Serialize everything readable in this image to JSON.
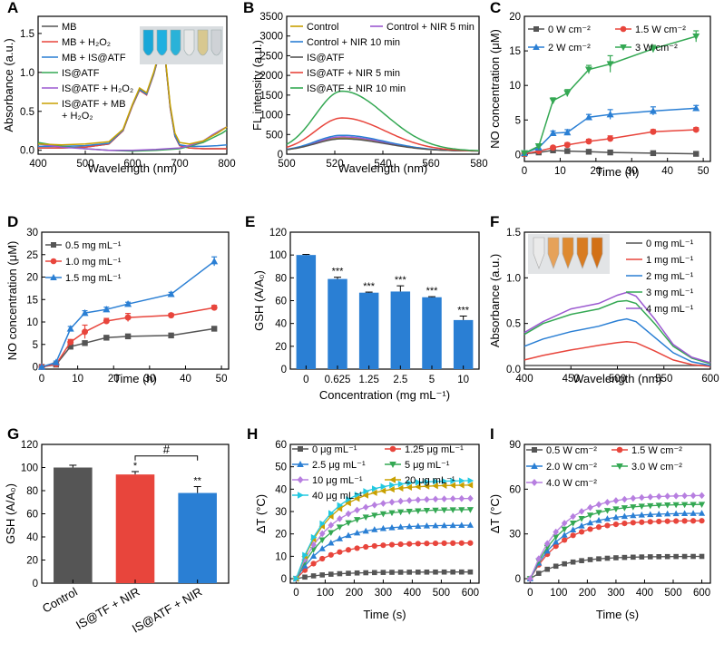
{
  "figure": {
    "panel_letters": [
      "A",
      "B",
      "C",
      "D",
      "E",
      "F",
      "G",
      "H",
      "I"
    ]
  },
  "chart_data": [
    {
      "panel": "A",
      "type": "line",
      "xlabel": "Wavelength (nm)",
      "ylabel": "Absorbance (a.u.)",
      "xlim": [
        400,
        800
      ],
      "ylim": [
        -0.05,
        1.72
      ],
      "xticks": [
        400,
        500,
        600,
        700,
        800
      ],
      "yticks": [
        0.0,
        0.5,
        1.0,
        1.5
      ],
      "legend": {
        "position": "top-left",
        "entries": [
          "MB",
          "MB + H₂O₂",
          "MB + IS@ATF",
          "IS@ATF",
          "IS@ATF + H₂O₂",
          "IS@ATF + MB + H₂O₂"
        ]
      },
      "series": [
        {
          "name": "MB",
          "color": "#555555",
          "x": [
            400,
            450,
            500,
            550,
            580,
            600,
            615,
            630,
            645,
            660,
            665,
            670,
            680,
            690,
            700,
            720,
            750,
            780,
            800
          ],
          "y": [
            0.03,
            0.03,
            0.04,
            0.08,
            0.25,
            0.58,
            0.78,
            0.72,
            0.98,
            1.31,
            1.3,
            1.15,
            0.55,
            0.18,
            0.06,
            0.03,
            0.02,
            0.02,
            0.02
          ]
        },
        {
          "name": "MB + H₂O₂",
          "color": "#e8453c",
          "x": [
            400,
            450,
            500,
            550,
            580,
            600,
            615,
            630,
            645,
            660,
            665,
            670,
            680,
            690,
            700,
            720,
            750,
            780,
            800
          ],
          "y": [
            0.03,
            0.03,
            0.04,
            0.08,
            0.25,
            0.57,
            0.77,
            0.71,
            0.97,
            1.3,
            1.29,
            1.14,
            0.54,
            0.18,
            0.06,
            0.03,
            0.02,
            0.02,
            0.02
          ]
        },
        {
          "name": "MB + IS@ATF",
          "color": "#2a7fd4",
          "x": [
            400,
            450,
            500,
            550,
            580,
            600,
            615,
            630,
            645,
            660,
            665,
            670,
            680,
            690,
            700,
            720,
            750,
            780,
            800
          ],
          "y": [
            0.05,
            0.05,
            0.06,
            0.09,
            0.26,
            0.58,
            0.78,
            0.72,
            0.98,
            1.31,
            1.3,
            1.15,
            0.56,
            0.19,
            0.07,
            0.05,
            0.05,
            0.06,
            0.07
          ]
        },
        {
          "name": "IS@ATF",
          "color": "#34a853",
          "x": [
            400,
            450,
            500,
            550,
            600,
            650,
            700,
            720,
            750,
            770,
            790,
            800
          ],
          "y": [
            0.1,
            0.05,
            0.02,
            0.0,
            -0.01,
            0.0,
            0.02,
            0.05,
            0.1,
            0.16,
            0.22,
            0.26
          ]
        },
        {
          "name": "IS@ATF + H₂O₂",
          "color": "#9b59d0",
          "x": [
            400,
            450,
            500,
            550,
            600,
            650,
            700,
            720,
            750,
            770,
            790,
            800
          ],
          "y": [
            0.08,
            0.04,
            0.02,
            0.0,
            0.0,
            0.01,
            0.03,
            0.06,
            0.12,
            0.2,
            0.27,
            0.3
          ]
        },
        {
          "name": "IS@ATF + MB + H₂O₂",
          "color": "#c8a000",
          "x": [
            400,
            450,
            500,
            550,
            580,
            600,
            615,
            630,
            645,
            660,
            665,
            670,
            680,
            690,
            700,
            720,
            750,
            780,
            800
          ],
          "y": [
            0.08,
            0.07,
            0.08,
            0.11,
            0.27,
            0.59,
            0.8,
            0.74,
            1.0,
            1.33,
            1.32,
            1.17,
            0.58,
            0.22,
            0.1,
            0.08,
            0.12,
            0.22,
            0.3
          ]
        }
      ]
    },
    {
      "panel": "B",
      "type": "line",
      "xlabel": "Wavelength (nm)",
      "ylabel": "FL intensity (a.u.)",
      "xlim": [
        500,
        580
      ],
      "ylim": [
        0,
        3500
      ],
      "xticks": [
        500,
        520,
        540,
        560,
        580
      ],
      "yticks": [
        0,
        500,
        1000,
        1500,
        2000,
        2500,
        3000,
        3500
      ],
      "legend": {
        "position": "top",
        "entries": [
          "Control",
          "Control + NIR 5 min",
          "Control + NIR 10 min",
          "IS@ATF",
          "IS@ATF + NIR 5 min",
          "IS@ATF + NIR 10 min"
        ]
      },
      "series": [
        {
          "name": "Control",
          "color": "#c8a000",
          "peak": 410
        },
        {
          "name": "Control + NIR 5 min",
          "color": "#9b59d0",
          "peak": 440
        },
        {
          "name": "Control + NIR 10 min",
          "color": "#2a7fd4",
          "peak": 480
        },
        {
          "name": "IS@ATF",
          "color": "#555555",
          "peak": 390
        },
        {
          "name": "IS@ATF + NIR 5 min",
          "color": "#e8453c",
          "peak": 920
        },
        {
          "name": "IS@ATF + NIR 10 min",
          "color": "#34a853",
          "peak": 1600
        }
      ],
      "peak_wavelength": 523
    },
    {
      "panel": "C",
      "type": "line",
      "xlabel": "Time (h)",
      "ylabel": "NO concentration (μM)",
      "xlim": [
        0,
        52
      ],
      "ylim": [
        -1,
        20
      ],
      "xticks": [
        0,
        10,
        20,
        30,
        40,
        50
      ],
      "yticks": [
        0,
        5,
        10,
        15,
        20
      ],
      "legend": {
        "position": "top",
        "entries": [
          "0 W cm⁻²",
          "1.5 W cm⁻²",
          "2 W cm⁻²",
          "3 W cm⁻²"
        ]
      },
      "x": [
        0,
        4,
        8,
        12,
        18,
        24,
        36,
        48
      ],
      "series": [
        {
          "name": "0 W cm⁻²",
          "color": "#555555",
          "marker": "square",
          "values": [
            0.1,
            0.3,
            0.6,
            0.5,
            0.4,
            0.3,
            0.2,
            0.1
          ],
          "err": [
            0.1,
            0.1,
            0.2,
            0.2,
            0.2,
            0.2,
            0.2,
            0.2
          ]
        },
        {
          "name": "1.5 W cm⁻²",
          "color": "#e8453c",
          "marker": "circle",
          "values": [
            0.1,
            0.5,
            1.0,
            1.4,
            1.9,
            2.3,
            3.3,
            3.6
          ],
          "err": [
            0.1,
            0.2,
            0.2,
            0.3,
            0.3,
            0.4,
            0.3,
            0.3
          ]
        },
        {
          "name": "2 W cm⁻²",
          "color": "#2a7fd4",
          "marker": "triangle-up",
          "values": [
            0.2,
            1.0,
            3.1,
            3.2,
            5.4,
            5.8,
            6.3,
            6.7
          ],
          "err": [
            0.2,
            0.3,
            0.3,
            0.4,
            0.4,
            0.7,
            0.6,
            0.4
          ]
        },
        {
          "name": "3 W cm⁻²",
          "color": "#34a853",
          "marker": "triangle-down",
          "values": [
            0.2,
            1.2,
            7.8,
            8.9,
            12.3,
            13.1,
            15.3,
            17.1
          ],
          "err": [
            0.2,
            0.3,
            0.4,
            0.5,
            0.6,
            1.2,
            0.5,
            0.8
          ]
        }
      ]
    },
    {
      "panel": "D",
      "type": "line",
      "xlabel": "Time (h)",
      "ylabel": "NO concentration (μM)",
      "xlim": [
        0,
        52
      ],
      "ylim": [
        -0.5,
        30
      ],
      "xticks": [
        0,
        10,
        20,
        30,
        40,
        50
      ],
      "yticks": [
        0,
        5,
        10,
        15,
        20,
        25,
        30
      ],
      "legend": {
        "position": "top-left",
        "entries": [
          "0.5 mg mL⁻¹",
          "1.0 mg mL⁻¹",
          "1.5 mg mL⁻¹"
        ]
      },
      "x": [
        0,
        4,
        8,
        12,
        18,
        24,
        36,
        48
      ],
      "series": [
        {
          "name": "0.5 mg mL⁻¹",
          "color": "#555555",
          "marker": "square",
          "values": [
            0,
            0.5,
            4.5,
            5.3,
            6.5,
            6.8,
            7.0,
            8.5
          ],
          "err": [
            0.1,
            0.2,
            0.5,
            0.4,
            0.3,
            0.3,
            0.3,
            0.3
          ]
        },
        {
          "name": "1.0 mg mL⁻¹",
          "color": "#e8453c",
          "marker": "circle",
          "values": [
            0,
            0.6,
            5.5,
            7.8,
            10.2,
            11.0,
            11.5,
            13.2
          ],
          "err": [
            0.1,
            0.2,
            0.6,
            1.5,
            0.6,
            0.9,
            0.4,
            0.5
          ]
        },
        {
          "name": "1.5 mg mL⁻¹",
          "color": "#2a7fd4",
          "marker": "triangle-up",
          "values": [
            0,
            1.0,
            8.5,
            12.0,
            12.8,
            14.0,
            16.2,
            23.5
          ],
          "err": [
            0.1,
            0.3,
            0.5,
            0.5,
            0.5,
            0.4,
            0.4,
            1.0
          ]
        }
      ]
    },
    {
      "panel": "E",
      "type": "bar",
      "xlabel": "Concentration (mg mL⁻¹)",
      "ylabel": "GSH (A/A₀)",
      "ylim": [
        0,
        120
      ],
      "yticks": [
        0,
        20,
        40,
        60,
        80,
        100,
        120
      ],
      "categories": [
        "0",
        "0.625",
        "1.25",
        "2.5",
        "5",
        "10"
      ],
      "values": [
        100,
        79,
        67,
        68,
        63,
        43
      ],
      "err": [
        0.5,
        1.5,
        0.5,
        5,
        0.5,
        3.5
      ],
      "annotations": [
        "",
        "***",
        "***",
        "***",
        "***",
        "***"
      ],
      "color": "#2a7fd4"
    },
    {
      "panel": "F",
      "type": "line",
      "xlabel": "Wavelength (nm)",
      "ylabel": "Absorbance (a.u.)",
      "xlim": [
        400,
        600
      ],
      "ylim": [
        0,
        1.5
      ],
      "xticks": [
        400,
        450,
        500,
        550,
        600
      ],
      "yticks": [
        0.0,
        0.5,
        1.0,
        1.5
      ],
      "legend": {
        "position": "top-right",
        "entries": [
          "0 mg mL⁻¹",
          "1 mg mL⁻¹",
          "2 mg mL⁻¹",
          "3 mg mL⁻¹",
          "4 mg mL⁻¹"
        ]
      },
      "series": [
        {
          "name": "0 mg mL⁻¹",
          "color": "#555555",
          "x": [
            400,
            450,
            500,
            550,
            600
          ],
          "y": [
            0.04,
            0.04,
            0.04,
            0.04,
            0.04
          ]
        },
        {
          "name": "1 mg mL⁻¹",
          "color": "#e8453c",
          "x": [
            400,
            420,
            450,
            480,
            500,
            510,
            520,
            540,
            560,
            580,
            600
          ],
          "y": [
            0.1,
            0.15,
            0.21,
            0.26,
            0.29,
            0.3,
            0.29,
            0.2,
            0.1,
            0.05,
            0.03
          ]
        },
        {
          "name": "2 mg mL⁻¹",
          "color": "#2a7fd4",
          "x": [
            400,
            420,
            450,
            480,
            500,
            510,
            520,
            540,
            560,
            580,
            600
          ],
          "y": [
            0.25,
            0.33,
            0.41,
            0.47,
            0.53,
            0.55,
            0.52,
            0.35,
            0.18,
            0.08,
            0.04
          ]
        },
        {
          "name": "3 mg mL⁻¹",
          "color": "#34a853",
          "x": [
            400,
            420,
            450,
            480,
            500,
            510,
            520,
            540,
            560,
            580,
            600
          ],
          "y": [
            0.38,
            0.5,
            0.6,
            0.66,
            0.74,
            0.75,
            0.72,
            0.5,
            0.25,
            0.12,
            0.06
          ]
        },
        {
          "name": "4 mg mL⁻¹",
          "color": "#9b59d0",
          "x": [
            400,
            420,
            450,
            480,
            500,
            510,
            520,
            540,
            560,
            580,
            600
          ],
          "y": [
            0.4,
            0.52,
            0.66,
            0.72,
            0.81,
            0.84,
            0.8,
            0.55,
            0.27,
            0.13,
            0.07
          ]
        }
      ]
    },
    {
      "panel": "G",
      "type": "bar",
      "ylabel": "GSH (A/A₀)",
      "ylim": [
        0,
        120
      ],
      "yticks": [
        0,
        20,
        40,
        60,
        80,
        100,
        120
      ],
      "categories": [
        "Control",
        "IS@TF + NIR",
        "IS@ATF + NIR"
      ],
      "values": [
        100,
        94,
        78
      ],
      "err": [
        2,
        2.5,
        5.5
      ],
      "colors": [
        "#555555",
        "#e8453c",
        "#2a7fd4"
      ],
      "annotations": [
        "",
        "*",
        "**"
      ],
      "bracket_label": "#"
    },
    {
      "panel": "H",
      "type": "line",
      "xlabel": "Time (s)",
      "ylabel": "ΔT (°C)",
      "xlim": [
        -20,
        630
      ],
      "ylim": [
        -2,
        60
      ],
      "xticks": [
        0,
        100,
        200,
        300,
        400,
        500,
        600
      ],
      "yticks": [
        0,
        10,
        20,
        30,
        40,
        50,
        60
      ],
      "legend": {
        "position": "top",
        "entries": [
          "0 μg mL⁻¹",
          "1.25 μg mL⁻¹",
          "2.5 μg mL⁻¹",
          "5 μg mL⁻¹",
          "10 μg mL⁻¹",
          "20 μg mL⁻¹",
          "40 μg mL⁻¹"
        ]
      },
      "series": [
        {
          "name": "0 μg mL⁻¹",
          "color": "#555555",
          "marker": "square",
          "plateau": 3
        },
        {
          "name": "1.25 μg mL⁻¹",
          "color": "#e8453c",
          "marker": "circle",
          "plateau": 16
        },
        {
          "name": "2.5 μg mL⁻¹",
          "color": "#2a7fd4",
          "marker": "triangle-up",
          "plateau": 24
        },
        {
          "name": "5 μg mL⁻¹",
          "color": "#34a853",
          "marker": "triangle-down",
          "plateau": 31
        },
        {
          "name": "10 μg mL⁻¹",
          "color": "#b77fe0",
          "marker": "diamond",
          "plateau": 36
        },
        {
          "name": "20 μg mL⁻¹",
          "color": "#c8a000",
          "marker": "triangle-left",
          "plateau": 42
        },
        {
          "name": "40 μg mL⁻¹",
          "color": "#22c8e0",
          "marker": "triangle-right",
          "plateau": 44
        }
      ]
    },
    {
      "panel": "I",
      "type": "line",
      "xlabel": "Time (s)",
      "ylabel": "ΔT (°C)",
      "xlim": [
        -20,
        630
      ],
      "ylim": [
        -3,
        90
      ],
      "xticks": [
        0,
        100,
        200,
        300,
        400,
        500,
        600
      ],
      "yticks": [
        0,
        30,
        60,
        90
      ],
      "legend": {
        "position": "top-left",
        "entries": [
          "0.5 W cm⁻²",
          "1.5 W cm⁻²",
          "2.0 W cm⁻²",
          "3.0 W cm⁻²",
          "4.0 W cm⁻²"
        ]
      },
      "series": [
        {
          "name": "0.5 W cm⁻²",
          "color": "#555555",
          "marker": "square",
          "plateau": 15
        },
        {
          "name": "1.5 W cm⁻²",
          "color": "#e8453c",
          "marker": "circle",
          "plateau": 39
        },
        {
          "name": "2.0 W cm⁻²",
          "color": "#2a7fd4",
          "marker": "triangle-up",
          "plateau": 44
        },
        {
          "name": "3.0 W cm⁻²",
          "color": "#34a853",
          "marker": "triangle-down",
          "plateau": 50
        },
        {
          "name": "4.0 W cm⁻²",
          "color": "#b77fe0",
          "marker": "diamond",
          "plateau": 56
        }
      ]
    }
  ]
}
